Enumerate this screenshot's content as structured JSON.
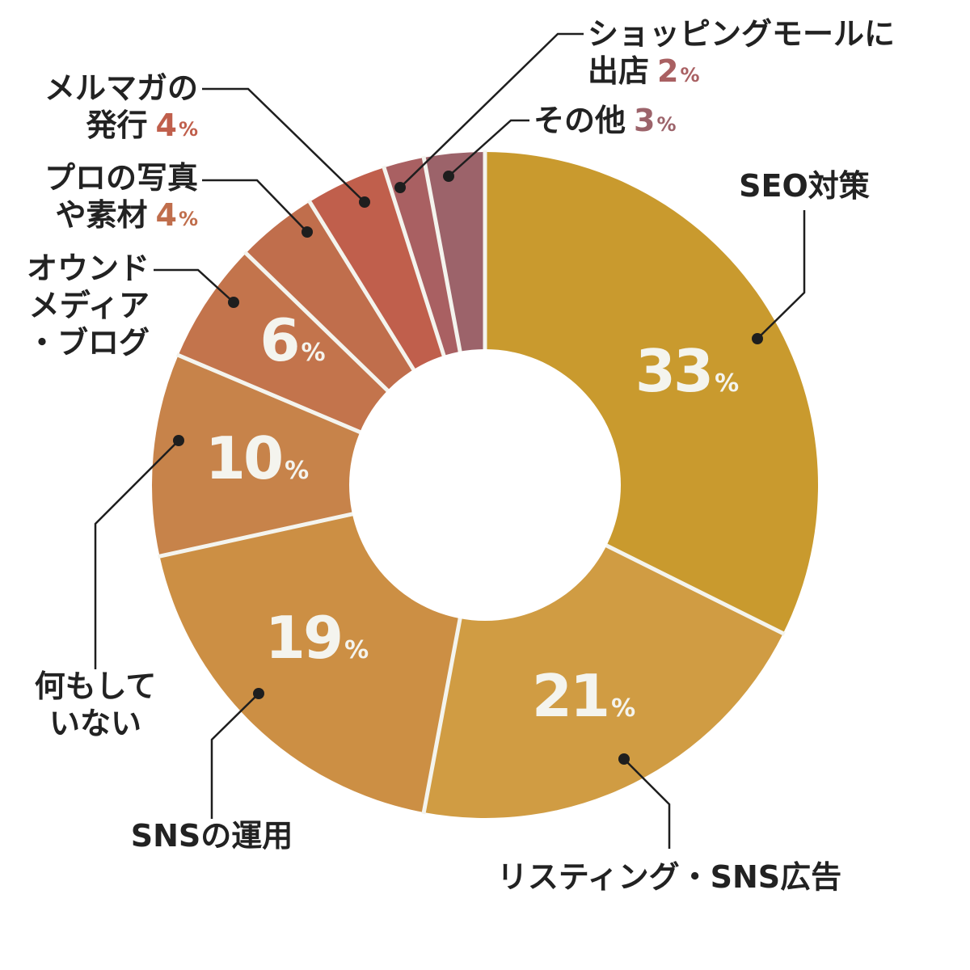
{
  "chart_data": {
    "type": "pie",
    "donut": true,
    "start": "12 o'clock, clockwise",
    "unit": "%",
    "slices": [
      {
        "label_lines": [
          "SEO対策"
        ],
        "value": 33,
        "color": "#c99a2e",
        "value_label": "33",
        "unit_label": "%"
      },
      {
        "label_lines": [
          "リスティング・SNS広告"
        ],
        "value": 21,
        "color": "#d09c43",
        "value_label": "21",
        "unit_label": "%"
      },
      {
        "label_lines": [
          "SNSの運用"
        ],
        "value": 19,
        "color": "#cc8f44",
        "value_label": "19",
        "unit_label": "%"
      },
      {
        "label_lines": [
          "何もして",
          "いない"
        ],
        "value": 10,
        "color": "#c7834a",
        "value_label": "10",
        "unit_label": "%"
      },
      {
        "label_lines": [
          "オウンド",
          "メディア",
          "・ブログ"
        ],
        "value": 6,
        "color": "#c3744c",
        "value_label": "6",
        "unit_label": "%"
      },
      {
        "label_lines": [
          "プロの写真",
          "や素材"
        ],
        "value": 4,
        "color": "#c06e4c",
        "value_label": "4",
        "unit_label": "%"
      },
      {
        "label_lines": [
          "メルマガの",
          "発行"
        ],
        "value": 4,
        "color": "#c05f4c",
        "value_label": "4",
        "unit_label": "%"
      },
      {
        "label_lines": [
          "ショッピングモールに",
          "出店"
        ],
        "value": 2,
        "color": "#a96062",
        "value_label": "2",
        "unit_label": "%"
      },
      {
        "label_lines": [
          "その他"
        ],
        "value": 3,
        "color": "#9c636a",
        "value_label": "3",
        "unit_label": "%"
      }
    ]
  }
}
